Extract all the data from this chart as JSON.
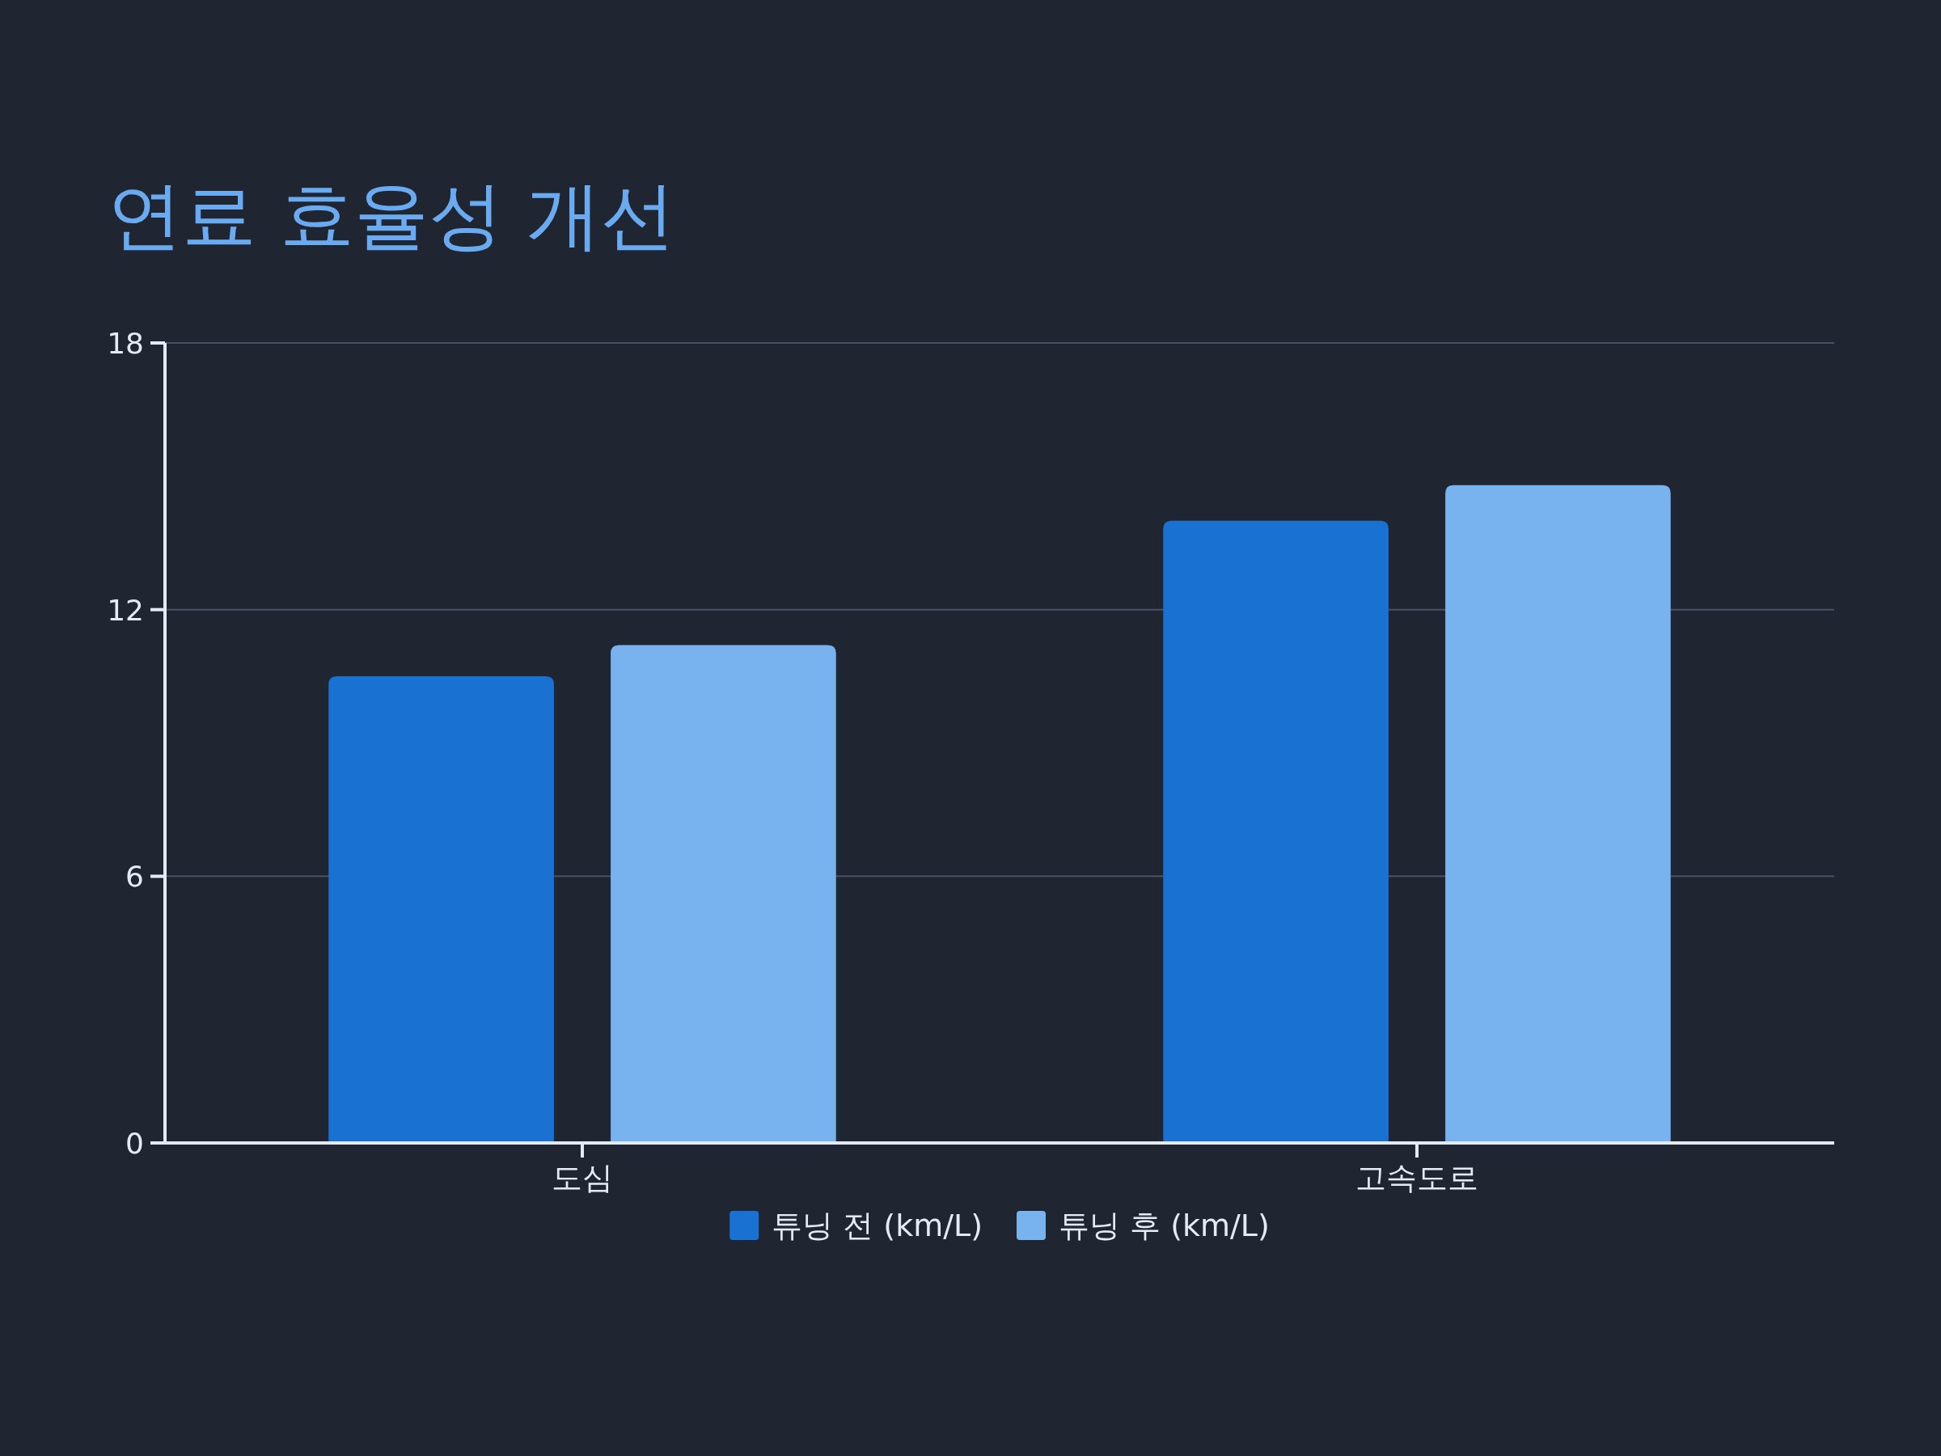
{
  "chart_data": {
    "type": "bar",
    "title": "연료 효율성 개선",
    "categories": [
      "도심",
      "고속도로"
    ],
    "series": [
      {
        "name": "튜닝 전 (km/L)",
        "color": "#1971d2",
        "values": [
          10.5,
          14.0
        ]
      },
      {
        "name": "튜닝 후 (km/L)",
        "color": "#78b3ef",
        "values": [
          11.2,
          14.8
        ]
      }
    ],
    "ylim": [
      0,
      18
    ],
    "yticks": [
      0,
      6,
      12,
      18
    ],
    "grid": "y",
    "legend": "bottom"
  }
}
